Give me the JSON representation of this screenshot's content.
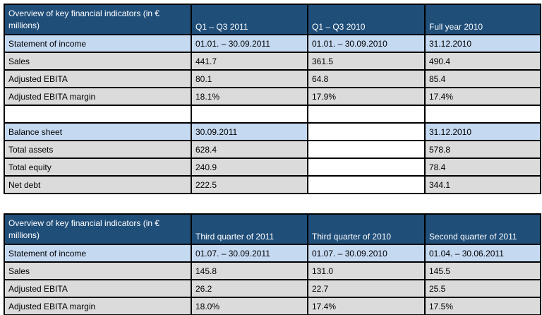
{
  "colors": {
    "header_bg": "#1F4E79",
    "header_text": "#FFFFFF",
    "section_row_bg": "#C5D9F1",
    "data_row_bg": "#DBDBDB",
    "border": "#000000",
    "body_text": "#000000"
  },
  "tables": [
    {
      "title": "Overview of key financial indicators (in € millions)",
      "columns": [
        "Q1 – Q3 2011",
        "Q1 – Q3 2010",
        "Full year 2010"
      ],
      "rows": [
        {
          "type": "subheader",
          "label": "Statement of income",
          "values": [
            "01.01. – 30.09.2011",
            "01.01. – 30.09.2010",
            "31.12.2010"
          ],
          "blank_cols": []
        },
        {
          "type": "data",
          "label": "Sales",
          "values": [
            "441.7",
            "361.5",
            "490.4"
          ],
          "blank_cols": []
        },
        {
          "type": "data",
          "label": "Adjusted EBITA",
          "values": [
            "80.1",
            "64.8",
            "85.4"
          ],
          "blank_cols": []
        },
        {
          "type": "data",
          "label": "Adjusted EBITA margin",
          "values": [
            "18.1%",
            "17.9%",
            "17.4%"
          ],
          "blank_cols": []
        },
        {
          "type": "spacer",
          "label": "",
          "values": [
            "",
            "",
            ""
          ],
          "blank_cols": []
        },
        {
          "type": "subheader",
          "label": "Balance sheet",
          "values": [
            "30.09.2011",
            "",
            "31.12.2010"
          ],
          "blank_cols": [
            1
          ]
        },
        {
          "type": "data",
          "label": "Total assets",
          "values": [
            "628.4",
            "",
            "578.8"
          ],
          "blank_cols": [
            1
          ]
        },
        {
          "type": "data",
          "label": "Total equity",
          "values": [
            "240.9",
            "",
            "78.4"
          ],
          "blank_cols": [
            1
          ]
        },
        {
          "type": "data",
          "label": "Net debt",
          "values": [
            "222.5",
            "",
            "344.1"
          ],
          "blank_cols": [
            1
          ]
        }
      ]
    },
    {
      "title": "Overview of key financial indicators (in € millions)",
      "columns": [
        "Third quarter of 2011",
        "Third quarter of 2010",
        "Second quarter of 2011"
      ],
      "rows": [
        {
          "type": "subheader",
          "label": "Statement of income",
          "values": [
            "01.07. – 30.09.2011",
            "01.07. – 30.09.2010",
            "01.04. – 30.06.2011"
          ],
          "blank_cols": []
        },
        {
          "type": "data",
          "label": "Sales",
          "values": [
            "145.8",
            "131.0",
            "145.5"
          ],
          "blank_cols": []
        },
        {
          "type": "data",
          "label": "Adjusted EBITA",
          "values": [
            "26.2",
            "22.7",
            "25.5"
          ],
          "blank_cols": []
        },
        {
          "type": "data",
          "label": "Adjusted EBITA margin",
          "values": [
            "18.0%",
            "17.4%",
            "17.5%"
          ],
          "blank_cols": []
        }
      ]
    }
  ]
}
